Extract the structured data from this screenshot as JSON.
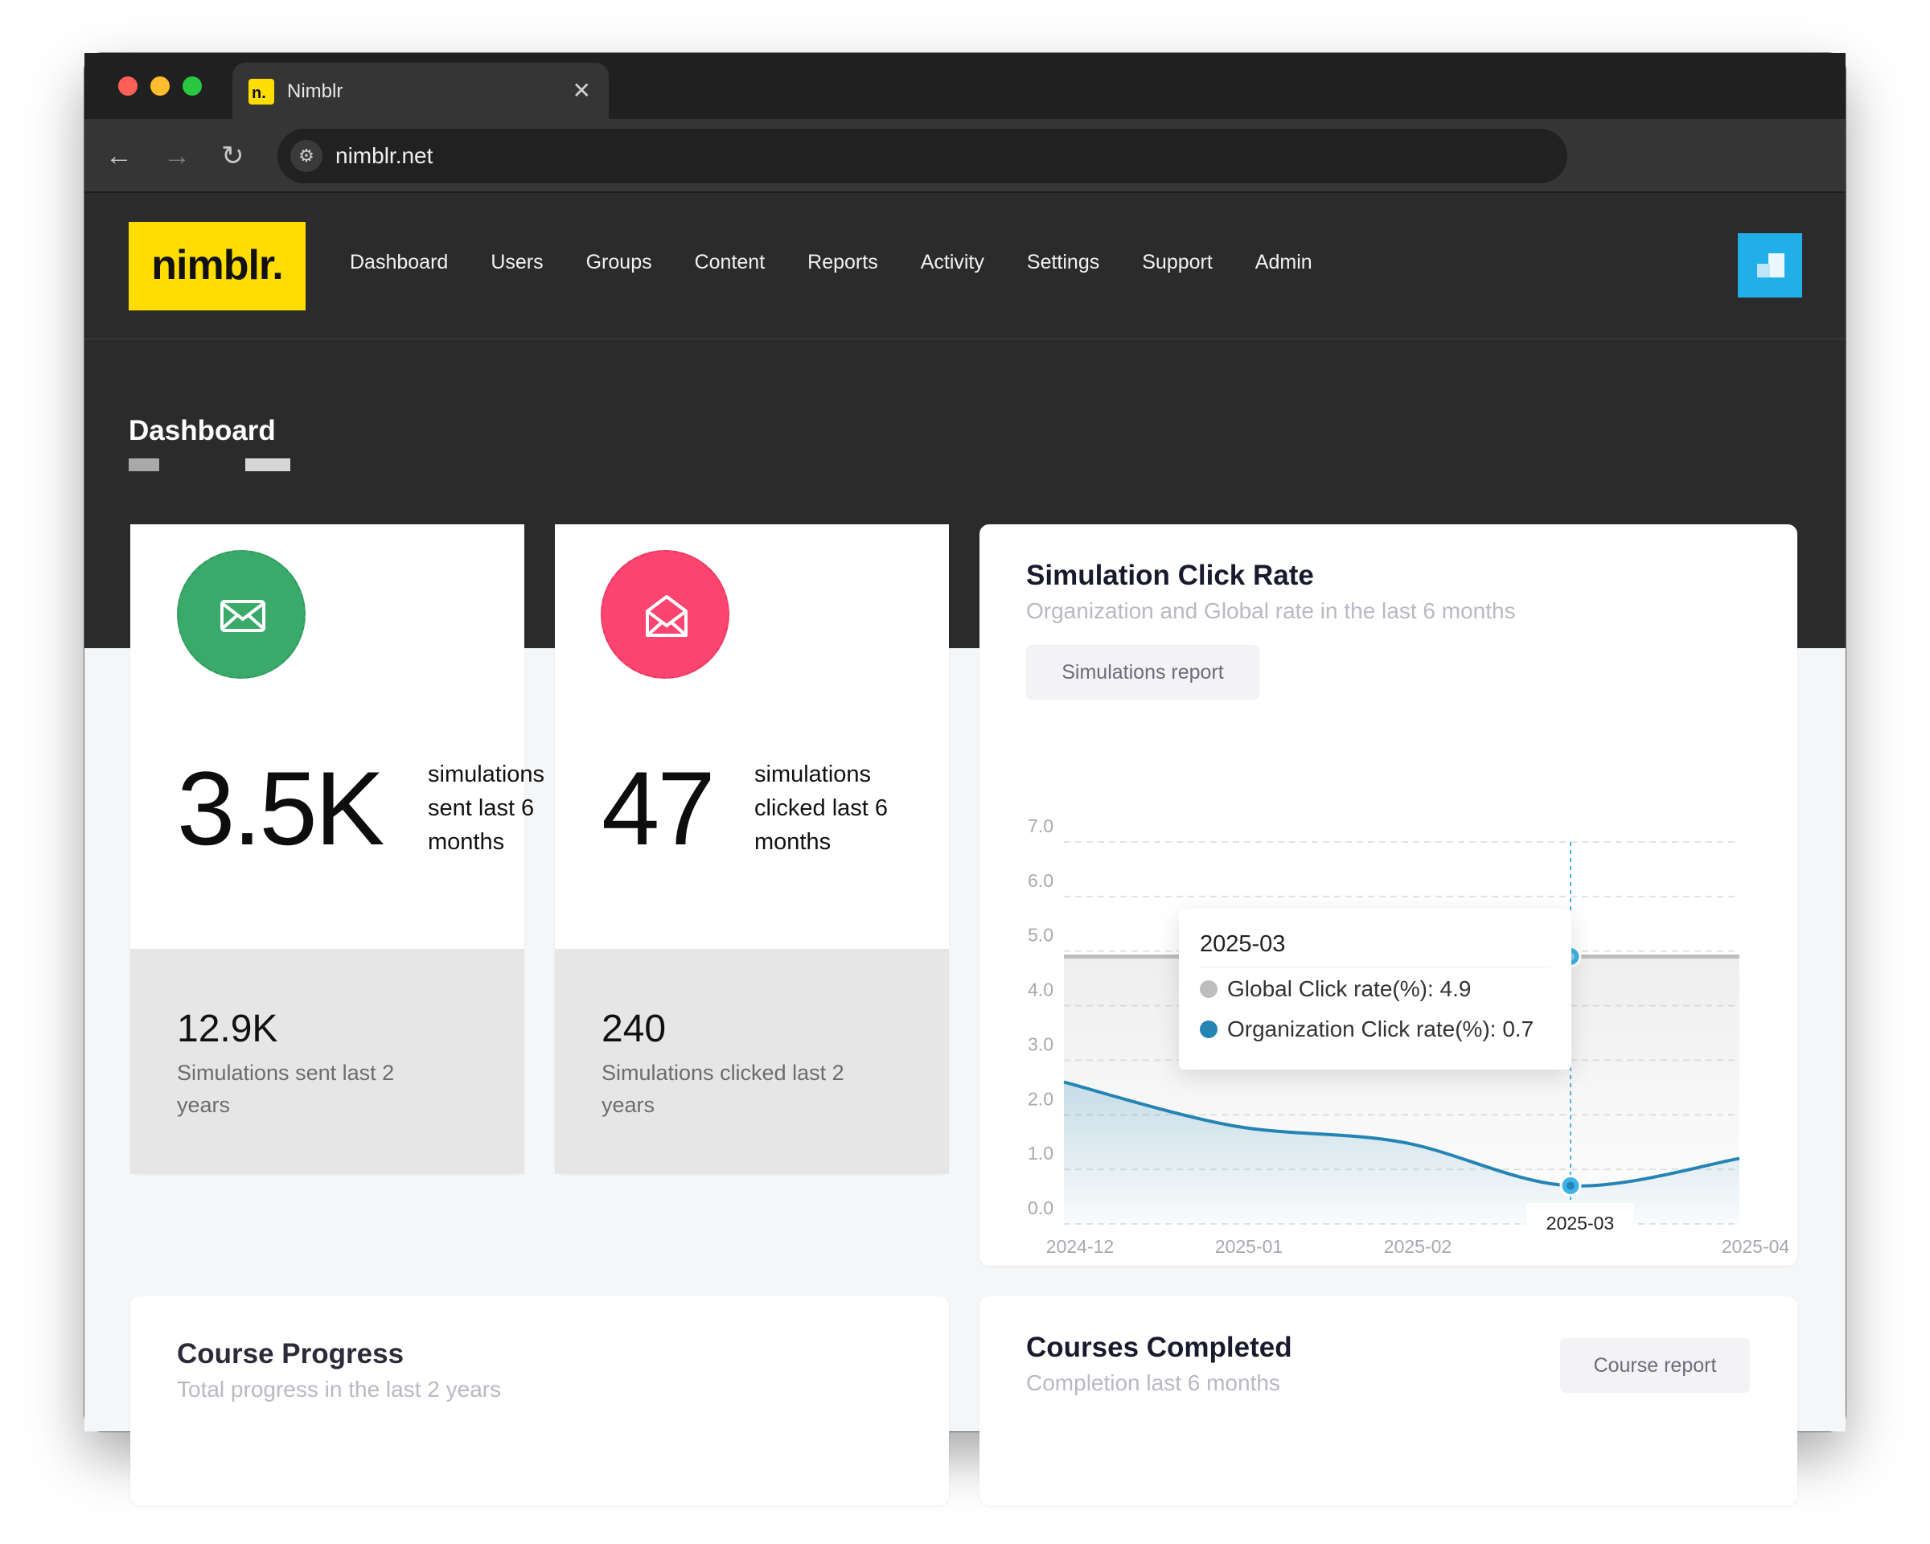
{
  "browser": {
    "tab_title": "Nimblr",
    "favicon_text": "n.",
    "url": "nimblr.net"
  },
  "nav": {
    "logo": "nimblr.",
    "items": [
      "Dashboard",
      "Users",
      "Groups",
      "Content",
      "Reports",
      "Activity",
      "Settings",
      "Support",
      "Admin"
    ]
  },
  "page": {
    "title": "Dashboard"
  },
  "stats": [
    {
      "icon": "envelope-icon",
      "color": "#3aaa6a",
      "value": "3.5K",
      "label": "simulations sent last 6 months",
      "sub_value": "12.9K",
      "sub_label": "Simulations sent last 2 years"
    },
    {
      "icon": "envelope-open-icon",
      "color": "#fb4570",
      "value": "47",
      "label": "simulations clicked last 6 months",
      "sub_value": "240",
      "sub_label": "Simulations clicked last 2 years"
    }
  ],
  "click_rate": {
    "title": "Simulation Click Rate",
    "subtitle": "Organization and Global rate in the last 6 months",
    "button": "Simulations report",
    "tooltip": {
      "title": "2025-03",
      "rows": [
        "Global Click rate(%): 4.9",
        "Organization Click rate(%): 0.7"
      ]
    },
    "colors": {
      "global": "#bdbdbd",
      "org": "#2484b4",
      "accent": "#3fb2e6"
    }
  },
  "chart_data": {
    "type": "area",
    "x": [
      "2024-12",
      "2025-01",
      "2025-02",
      "2025-03",
      "2025-04"
    ],
    "y_ticks": [
      "0.0",
      "1.0",
      "2.0",
      "3.0",
      "4.0",
      "5.0",
      "6.0",
      "7.0"
    ],
    "ylim": [
      0,
      7
    ],
    "series": [
      {
        "name": "Global Click rate(%)",
        "values": [
          4.9,
          4.9,
          4.9,
          4.9,
          4.9
        ]
      },
      {
        "name": "Organization Click rate(%)",
        "values": [
          2.6,
          1.8,
          1.5,
          0.7,
          1.2
        ]
      }
    ],
    "highlight": "2025-03"
  },
  "course_progress": {
    "title": "Course Progress",
    "subtitle": "Total progress in the last 2 years"
  },
  "courses_completed": {
    "title": "Courses Completed",
    "subtitle": "Completion last 6 months",
    "button": "Course report"
  }
}
